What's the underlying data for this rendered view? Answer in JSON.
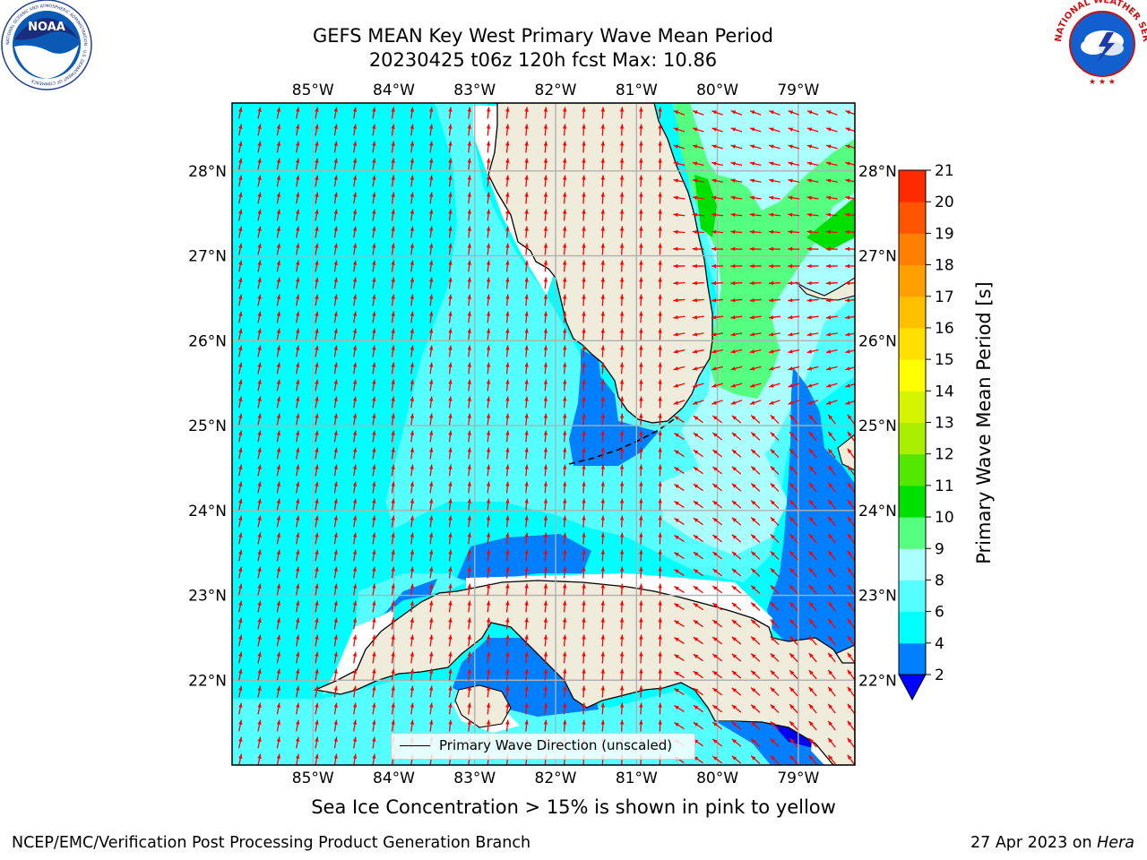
{
  "header": {
    "title_line1": "GEFS MEAN Key West Primary Wave Mean Period",
    "title_line2": "20230425 t06z 120h fcst   Max: 10.86"
  },
  "logos": {
    "left": {
      "name": "noaa-logo",
      "text": "NOAA",
      "ring_text": "NATIONAL OCEANIC AND ATMOSPHERIC ADMINISTRATION · U.S. DEPARTMENT OF COMMERCE"
    },
    "right": {
      "name": "nws-logo",
      "ring_text": "NATIONAL WEATHER SERVICE"
    }
  },
  "map": {
    "lon_labels": [
      "85°W",
      "84°W",
      "83°W",
      "82°W",
      "81°W",
      "80°W",
      "79°W"
    ],
    "lat_labels": [
      "28°N",
      "27°N",
      "26°N",
      "25°N",
      "24°N",
      "23°N",
      "22°N"
    ],
    "lon_values": [
      -85,
      -84,
      -83,
      -82,
      -81,
      -80,
      -79
    ],
    "lat_values": [
      28,
      27,
      26,
      25,
      24,
      23,
      22
    ],
    "extent": {
      "lon": [
        -86.0,
        -78.3
      ],
      "lat": [
        21.0,
        28.8
      ]
    },
    "land_color": "#efecdc",
    "ocean_color": "#00ffff",
    "arrow_color": "#ff0000",
    "grid": true,
    "legend_label": "Primary Wave Direction (unscaled)"
  },
  "colorbar": {
    "label": "Primary Wave Mean Period [s]",
    "ticks": [
      "2",
      "4",
      "6",
      "8",
      "9",
      "10",
      "11",
      "12",
      "13",
      "14",
      "15",
      "16",
      "17",
      "18",
      "19",
      "20",
      "21"
    ],
    "colors": [
      "#007fff",
      "#00ffff",
      "#55ffff",
      "#aaffff",
      "#55ff7f",
      "#00e000",
      "#54e800",
      "#aaee00",
      "#d4f400",
      "#ffff00",
      "#ffe000",
      "#ffc000",
      "#ffa000",
      "#ff8000",
      "#ff5500",
      "#ff2a00"
    ],
    "under_color": "#0000ff"
  },
  "caption": "Sea Ice Concentration > 15% is shown in pink to yellow",
  "footer": {
    "left": "NCEP/EMC/Verification Post Processing Product Generation Branch",
    "right_prefix": "27 Apr 2023 on ",
    "right_machine": "Hera"
  }
}
